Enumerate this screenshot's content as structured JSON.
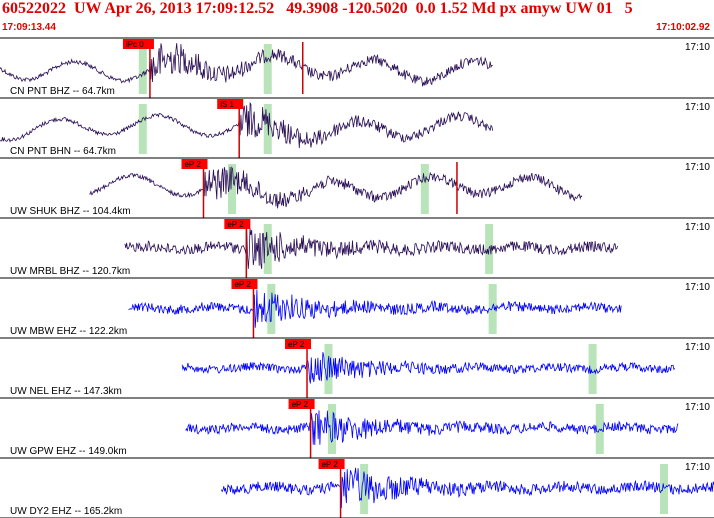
{
  "header": {
    "title": "60522022  UW Apr 26, 2013 17:09:12.52   49.3908 -120.5020  0.0 1.52 Md px amyw UW 01   5",
    "time_start": "17:09:13.44",
    "time_end": "17:10:02.92"
  },
  "colors": {
    "header_text": "#e00000",
    "trace_dark": "#2a0f57",
    "trace_blue": "#0000ff",
    "pick_bg": "#ff0000",
    "pick_line": "#cc0000",
    "window_marker": "#b9e3b9",
    "separator": "#000000"
  },
  "panels": [
    {
      "label": "CN PNT BHZ -- 64.7km",
      "time": "17:10",
      "pick": "iPc 0",
      "color": "dark",
      "amp": 0.6,
      "start": 0.0,
      "end": 0.69,
      "lowfreq": true,
      "pickpos": 0.21,
      "greens": [
        0.2,
        0.375
      ],
      "extraPick": 0.424
    },
    {
      "label": "CN PNT BHN -- 64.7km",
      "time": "17:10",
      "pick": "iS 1",
      "color": "dark",
      "amp": 0.55,
      "start": 0.0,
      "end": 0.69,
      "lowfreq": true,
      "pickpos": 0.335,
      "greens": [
        0.2,
        0.375
      ],
      "extraPick": null
    },
    {
      "label": "UW SHUK BHZ -- 104.4km",
      "time": "17:10",
      "pick": "eP 2",
      "color": "dark",
      "amp": 0.55,
      "start": 0.125,
      "end": 0.815,
      "lowfreq": true,
      "pickpos": 0.285,
      "greens": [
        0.325,
        0.595
      ],
      "extraPick": 0.64
    },
    {
      "label": "UW MRBL BHZ -- 120.7km",
      "time": "17:10",
      "pick": "eP 2",
      "color": "dark",
      "amp": 0.5,
      "start": 0.175,
      "end": 0.865,
      "lowfreq": false,
      "pickpos": 0.345,
      "greens": [
        0.375,
        0.685
      ],
      "extraPick": null
    },
    {
      "label": "UW MBW EHZ -- 122.2km",
      "time": "17:10",
      "pick": "eP 2",
      "color": "blue",
      "amp": 0.45,
      "start": 0.18,
      "end": 0.87,
      "lowfreq": false,
      "pickpos": 0.355,
      "greens": [
        0.38,
        0.69
      ],
      "extraPick": null
    },
    {
      "label": "UW NEL EHZ -- 147.3km",
      "time": "17:10",
      "pick": "eP 2",
      "color": "blue",
      "amp": 0.4,
      "start": 0.255,
      "end": 0.945,
      "lowfreq": false,
      "pickpos": 0.43,
      "greens": [
        0.46,
        0.83
      ],
      "extraPick": null
    },
    {
      "label": "UW GPW EHZ -- 149.0km",
      "time": "17:10",
      "pick": "eP 2",
      "color": "blue",
      "amp": 0.45,
      "start": 0.26,
      "end": 0.95,
      "lowfreq": false,
      "pickpos": 0.435,
      "greens": [
        0.465,
        0.84
      ],
      "extraPick": null
    },
    {
      "label": "UW DY2 EHZ -- 165.2km",
      "time": "17:10",
      "pick": "eP 2",
      "color": "blue",
      "amp": 0.5,
      "start": 0.31,
      "end": 1.0,
      "lowfreq": false,
      "pickpos": 0.477,
      "greens": [
        0.51,
        0.93
      ],
      "extraPick": null
    }
  ]
}
